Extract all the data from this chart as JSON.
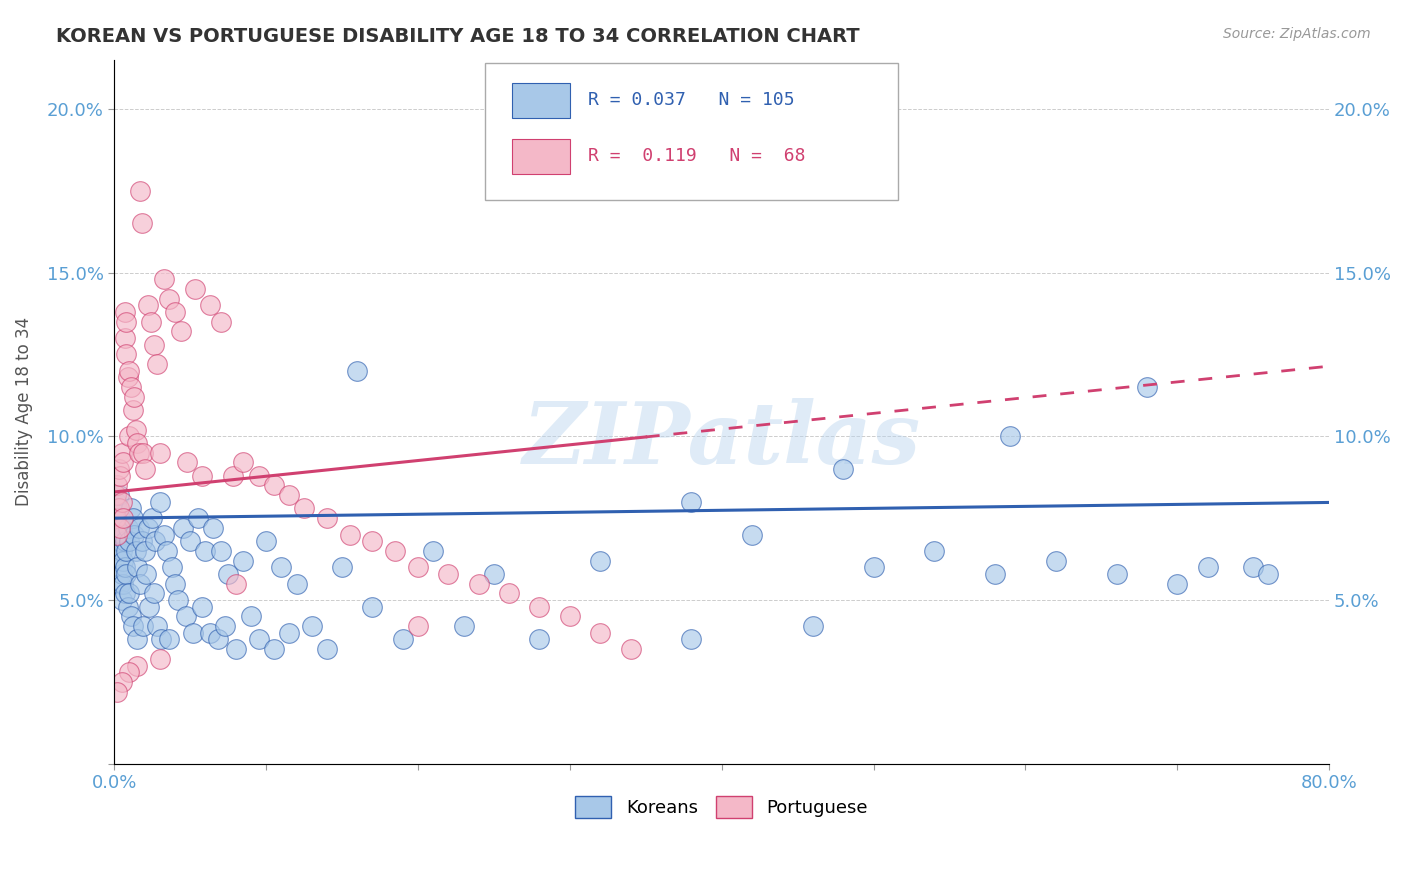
{
  "title": "KOREAN VS PORTUGUESE DISABILITY AGE 18 TO 34 CORRELATION CHART",
  "source": "Source: ZipAtlas.com",
  "ylabel": "Disability Age 18 to 34",
  "x_min": 0.0,
  "x_max": 0.8,
  "y_min": 0.0,
  "y_max": 0.215,
  "x_ticks": [
    0.0,
    0.1,
    0.2,
    0.3,
    0.4,
    0.5,
    0.6,
    0.7,
    0.8
  ],
  "x_tick_labels": [
    "0.0%",
    "",
    "",
    "",
    "",
    "",
    "",
    "",
    "80.0%"
  ],
  "y_ticks": [
    0.0,
    0.05,
    0.1,
    0.15,
    0.2
  ],
  "y_tick_labels": [
    "",
    "5.0%",
    "10.0%",
    "15.0%",
    "20.0%"
  ],
  "korean_R": 0.037,
  "korean_N": 105,
  "portuguese_R": 0.119,
  "portuguese_N": 68,
  "korean_color": "#a8c8e8",
  "portuguese_color": "#f4b8c8",
  "korean_line_color": "#3060b0",
  "portuguese_line_color": "#d04070",
  "watermark": "ZIPatlas",
  "title_fontsize": 14,
  "axis_label_color": "#5a9fd4",
  "koreans_x": [
    0.001,
    0.001,
    0.002,
    0.002,
    0.002,
    0.003,
    0.003,
    0.003,
    0.003,
    0.004,
    0.004,
    0.004,
    0.005,
    0.005,
    0.005,
    0.005,
    0.006,
    0.006,
    0.006,
    0.007,
    0.007,
    0.007,
    0.008,
    0.008,
    0.009,
    0.009,
    0.01,
    0.01,
    0.011,
    0.011,
    0.012,
    0.012,
    0.013,
    0.014,
    0.015,
    0.015,
    0.016,
    0.017,
    0.018,
    0.019,
    0.02,
    0.021,
    0.022,
    0.023,
    0.025,
    0.026,
    0.027,
    0.028,
    0.03,
    0.031,
    0.033,
    0.035,
    0.036,
    0.038,
    0.04,
    0.042,
    0.045,
    0.047,
    0.05,
    0.052,
    0.055,
    0.058,
    0.06,
    0.063,
    0.065,
    0.068,
    0.07,
    0.073,
    0.075,
    0.08,
    0.085,
    0.09,
    0.095,
    0.1,
    0.105,
    0.11,
    0.115,
    0.12,
    0.13,
    0.14,
    0.15,
    0.17,
    0.19,
    0.21,
    0.23,
    0.25,
    0.28,
    0.32,
    0.38,
    0.42,
    0.46,
    0.5,
    0.54,
    0.58,
    0.62,
    0.66,
    0.7,
    0.72,
    0.75,
    0.76,
    0.68,
    0.59,
    0.48,
    0.38,
    0.16
  ],
  "koreans_y": [
    0.08,
    0.075,
    0.078,
    0.072,
    0.068,
    0.082,
    0.07,
    0.065,
    0.06,
    0.075,
    0.068,
    0.055,
    0.072,
    0.065,
    0.058,
    0.05,
    0.07,
    0.062,
    0.055,
    0.068,
    0.06,
    0.052,
    0.065,
    0.058,
    0.072,
    0.048,
    0.068,
    0.052,
    0.078,
    0.045,
    0.075,
    0.042,
    0.07,
    0.065,
    0.06,
    0.038,
    0.072,
    0.055,
    0.068,
    0.042,
    0.065,
    0.058,
    0.072,
    0.048,
    0.075,
    0.052,
    0.068,
    0.042,
    0.08,
    0.038,
    0.07,
    0.065,
    0.038,
    0.06,
    0.055,
    0.05,
    0.072,
    0.045,
    0.068,
    0.04,
    0.075,
    0.048,
    0.065,
    0.04,
    0.072,
    0.038,
    0.065,
    0.042,
    0.058,
    0.035,
    0.062,
    0.045,
    0.038,
    0.068,
    0.035,
    0.06,
    0.04,
    0.055,
    0.042,
    0.035,
    0.06,
    0.048,
    0.038,
    0.065,
    0.042,
    0.058,
    0.038,
    0.062,
    0.038,
    0.07,
    0.042,
    0.06,
    0.065,
    0.058,
    0.062,
    0.058,
    0.055,
    0.06,
    0.06,
    0.058,
    0.115,
    0.1,
    0.09,
    0.08,
    0.12
  ],
  "portuguese_x": [
    0.001,
    0.001,
    0.002,
    0.002,
    0.003,
    0.003,
    0.004,
    0.004,
    0.005,
    0.005,
    0.006,
    0.006,
    0.007,
    0.007,
    0.008,
    0.008,
    0.009,
    0.01,
    0.01,
    0.011,
    0.012,
    0.013,
    0.014,
    0.015,
    0.016,
    0.017,
    0.018,
    0.019,
    0.02,
    0.022,
    0.024,
    0.026,
    0.028,
    0.03,
    0.033,
    0.036,
    0.04,
    0.044,
    0.048,
    0.053,
    0.058,
    0.063,
    0.07,
    0.078,
    0.085,
    0.095,
    0.105,
    0.115,
    0.125,
    0.14,
    0.155,
    0.17,
    0.185,
    0.2,
    0.22,
    0.24,
    0.26,
    0.28,
    0.3,
    0.32,
    0.34,
    0.2,
    0.08,
    0.03,
    0.015,
    0.01,
    0.005,
    0.002
  ],
  "portuguese_y": [
    0.082,
    0.075,
    0.085,
    0.07,
    0.09,
    0.078,
    0.088,
    0.072,
    0.095,
    0.08,
    0.092,
    0.075,
    0.138,
    0.13,
    0.125,
    0.135,
    0.118,
    0.12,
    0.1,
    0.115,
    0.108,
    0.112,
    0.102,
    0.098,
    0.095,
    0.175,
    0.165,
    0.095,
    0.09,
    0.14,
    0.135,
    0.128,
    0.122,
    0.095,
    0.148,
    0.142,
    0.138,
    0.132,
    0.092,
    0.145,
    0.088,
    0.14,
    0.135,
    0.088,
    0.092,
    0.088,
    0.085,
    0.082,
    0.078,
    0.075,
    0.07,
    0.068,
    0.065,
    0.06,
    0.058,
    0.055,
    0.052,
    0.048,
    0.045,
    0.04,
    0.035,
    0.042,
    0.055,
    0.032,
    0.03,
    0.028,
    0.025,
    0.022
  ],
  "korean_intercept": 0.075,
  "korean_slope": 0.006,
  "portuguese_intercept": 0.083,
  "portuguese_slope": 0.048
}
